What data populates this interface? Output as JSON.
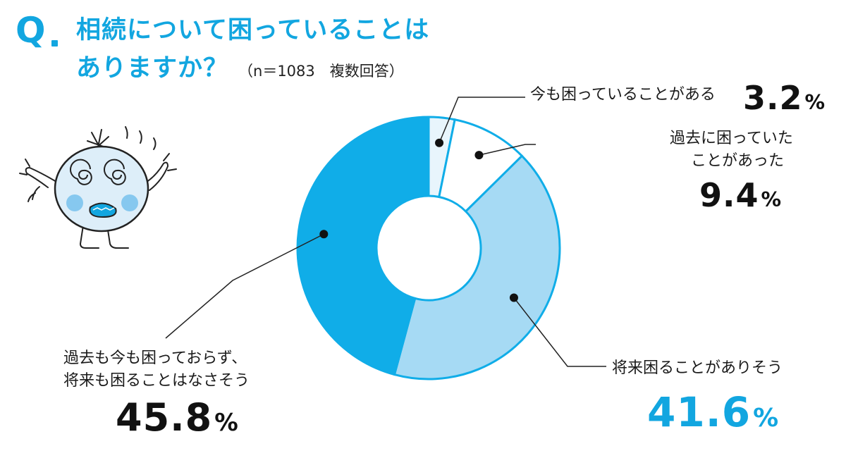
{
  "question": {
    "mark": "Q",
    "title_line1": "相続について困っていることは",
    "title_line2": "ありますか？",
    "sample_note": "（n＝1083　複数回答）"
  },
  "chart_data": {
    "type": "pie",
    "donut": true,
    "title": "相続について困っていることはありますか？",
    "note": "n＝1083　複数回答",
    "slices": [
      {
        "label": "今も困っていることがある",
        "value": 3.2,
        "color": "#e8f5fc"
      },
      {
        "label": "過去に困っていたことがあった",
        "value": 9.4,
        "color": "#ffffff"
      },
      {
        "label": "将来困ることがありそう",
        "value": 41.6,
        "color": "#a6daf4"
      },
      {
        "label": "過去も今も困っておらず、将来も困ることはなさそう",
        "value": 45.8,
        "color": "#10ade8"
      }
    ],
    "unit": "%",
    "outline_color": "#10ade8"
  },
  "labels": {
    "s1": {
      "text": "今も困っていることがある",
      "value": "3.2",
      "unit": "%"
    },
    "s2": {
      "line1": "過去に困っていた",
      "line2": "ことがあった",
      "value": "9.4",
      "unit": "%"
    },
    "s3": {
      "text": "将来困ることがありそう",
      "value": "41.6",
      "unit": "%"
    },
    "s4": {
      "line1": "過去も今も困っておらず、",
      "line2": "将来も困ることはなさそう",
      "value": "45.8",
      "unit": "%"
    }
  },
  "colors": {
    "accent": "#12a6e0",
    "text": "#1a1a1a"
  }
}
